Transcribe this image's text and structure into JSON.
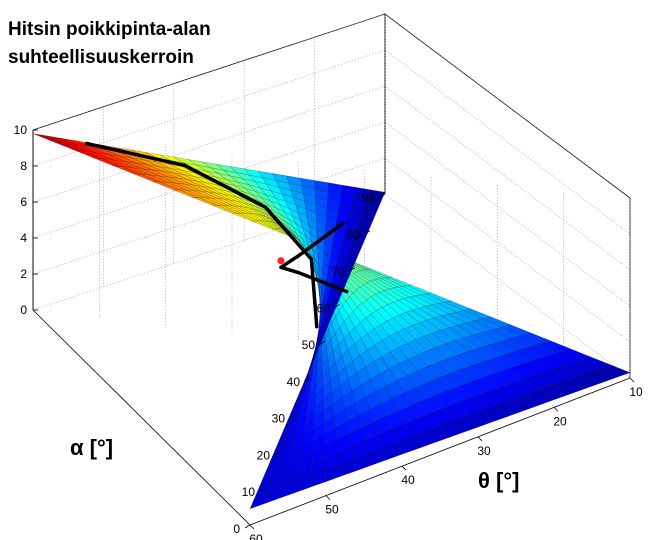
{
  "chart_data": {
    "type": "surface",
    "title_lines": [
      "Hitsin poikkipinta-alan",
      "suhteellisuuskerroin"
    ],
    "xlabel": "θ [°]",
    "ylabel": "α [°]",
    "zlabel": "",
    "x_ticks": [
      10,
      20,
      30,
      40,
      50,
      60
    ],
    "y_ticks": [
      0,
      10,
      20,
      30,
      40,
      50,
      60,
      70,
      80,
      90
    ],
    "z_ticks": [
      0,
      2,
      4,
      6,
      8,
      10
    ],
    "xlim": [
      10,
      60
    ],
    "ylim": [
      0,
      90
    ],
    "zlim": [
      0,
      10
    ],
    "grid": true,
    "colormap": "jet",
    "corner_values": [
      {
        "theta": 10,
        "alpha": 0,
        "z": 0.3
      },
      {
        "theta": 10,
        "alpha": 90,
        "z": 9.8
      },
      {
        "theta": 60,
        "alpha": 0,
        "z": 0.9
      },
      {
        "theta": 60,
        "alpha": 90,
        "z": 0.1
      }
    ],
    "curves": [
      {
        "color": "#000000",
        "points": [
          {
            "theta": 55,
            "alpha": 42,
            "z": 2.3
          },
          {
            "theta": 45,
            "alpha": 56,
            "z": 3.6
          },
          {
            "theta": 35,
            "alpha": 68,
            "z": 5.2
          },
          {
            "theta": 25,
            "alpha": 79,
            "z": 7.1
          },
          {
            "theta": 16,
            "alpha": 88,
            "z": 8.6
          }
        ]
      },
      {
        "color": "#000000",
        "points": [
          {
            "theta": 55,
            "alpha": 80,
            "z": 0.9
          },
          {
            "theta": 45,
            "alpha": 70,
            "z": 1.6
          },
          {
            "theta": 35,
            "alpha": 62,
            "z": 2.6
          },
          {
            "theta": 25,
            "alpha": 52,
            "z": 3.6
          },
          {
            "theta": 16,
            "alpha": 42,
            "z": 3.2
          }
        ]
      }
    ],
    "intersection": {
      "theta": 36,
      "alpha": 63,
      "z": 2.8,
      "color": "#ff2020"
    }
  }
}
